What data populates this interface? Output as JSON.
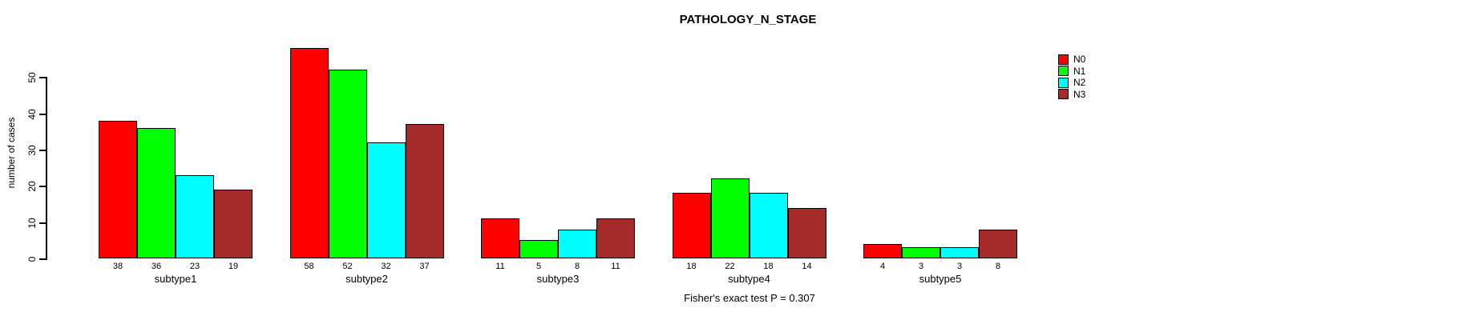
{
  "chart_data": {
    "type": "bar",
    "title": "PATHOLOGY_N_STAGE",
    "ylabel": "number of cases",
    "xlabel": "",
    "categories": [
      "subtype1",
      "subtype2",
      "subtype3",
      "subtype4",
      "subtype5"
    ],
    "series": [
      {
        "name": "N0",
        "color": "#FF0000",
        "values": [
          38,
          58,
          11,
          18,
          4
        ]
      },
      {
        "name": "N1",
        "color": "#00FF00",
        "values": [
          36,
          52,
          5,
          22,
          3
        ]
      },
      {
        "name": "N2",
        "color": "#00FFFF",
        "values": [
          23,
          32,
          8,
          18,
          3
        ]
      },
      {
        "name": "N3",
        "color": "#A52A2A",
        "values": [
          19,
          37,
          11,
          14,
          8
        ]
      }
    ],
    "yticks": [
      0,
      10,
      20,
      30,
      40,
      50
    ],
    "ylim": [
      0,
      58
    ],
    "grid": false,
    "bar_value_labels_shown": true,
    "legend_position": "top-right",
    "footer": "Fisher's exact test P = 0.307",
    "background_color": "#ffffff",
    "axis_color": "#000000"
  }
}
